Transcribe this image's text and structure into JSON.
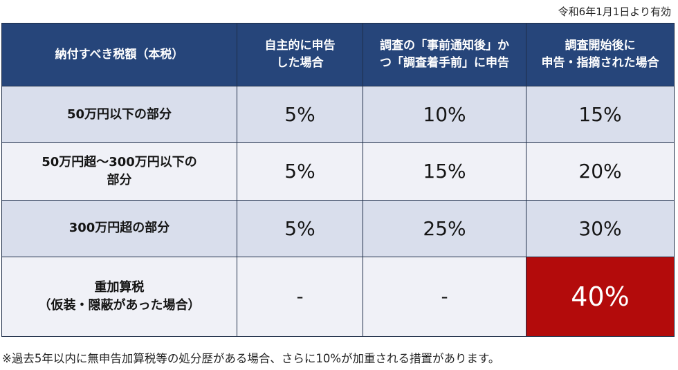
{
  "effective_date": "令和6年1月1日より有効",
  "header": {
    "col1": "納付すべき税額（本税）",
    "col2": [
      "自主的に申告",
      "した場合"
    ],
    "col3": [
      "調査の「事前通知後」か",
      "つ「調査着手前」に申告"
    ],
    "col4": [
      "調査開始後に",
      "申告・指摘された場合"
    ]
  },
  "rows": [
    {
      "label": [
        "50万円以下の部分"
      ],
      "values": [
        "5%",
        "10%",
        "15%"
      ]
    },
    {
      "label": [
        "50万円超～300万円以下の",
        "部分"
      ],
      "values": [
        "5%",
        "15%",
        "20%"
      ]
    },
    {
      "label": [
        "300万円超の部分"
      ],
      "values": [
        "5%",
        "25%",
        "30%"
      ]
    },
    {
      "label": [
        "重加算税",
        "（仮装・隠蔽があった場合）"
      ],
      "values": [
        "-",
        "-",
        "40%"
      ]
    }
  ],
  "highlight_color": "#b30b0b",
  "header_color": "#26457a",
  "footnote": "※過去5年以内に無申告加算税等の処分歴がある場合、さらに10%が加重される措置があります。"
}
